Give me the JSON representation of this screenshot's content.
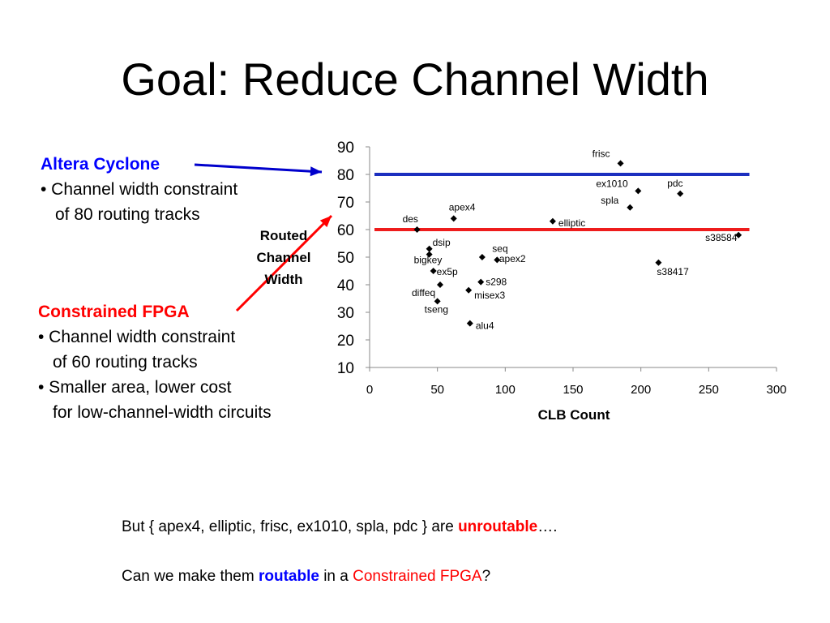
{
  "title": "Goal: Reduce Channel Width",
  "altera": {
    "heading": "Altera Cyclone",
    "line1": "•  Channel width constraint",
    "line2": "of 80 routing tracks"
  },
  "constrained": {
    "heading": "Constrained FPGA",
    "line1": "• Channel width constraint",
    "line2": "of 60 routing tracks",
    "line3": "• Smaller area, lower cost",
    "line4": "for low-channel-width circuits"
  },
  "colors": {
    "altera": "#0000cc",
    "constrained": "#ff0000",
    "blue_text": "#0000ff",
    "red_text": "#ff0000"
  },
  "chart_data": {
    "type": "scatter",
    "xlabel": "CLB Count",
    "ylabel_lines": [
      "Routed",
      "Channel",
      "Width"
    ],
    "xlim": [
      0,
      300
    ],
    "ylim": [
      10,
      90
    ],
    "xticks": [
      0,
      50,
      100,
      150,
      200,
      250,
      300
    ],
    "yticks": [
      10,
      20,
      30,
      40,
      50,
      60,
      70,
      80,
      90
    ],
    "grid": false,
    "marker": "diamond",
    "reference_lines": [
      {
        "y": 80,
        "x_range": [
          0,
          280
        ],
        "color": "#1c2fbf"
      },
      {
        "y": 60,
        "x_range": [
          0,
          280
        ],
        "color": "#ee1c1c"
      }
    ],
    "points": [
      {
        "label": "frisc",
        "x": 185,
        "y": 84
      },
      {
        "label": "ex1010",
        "x": 198,
        "y": 74
      },
      {
        "label": "pdc",
        "x": 229,
        "y": 73
      },
      {
        "label": "spla",
        "x": 192,
        "y": 68
      },
      {
        "label": "apex4",
        "x": 62,
        "y": 64
      },
      {
        "label": "elliptic",
        "x": 135,
        "y": 63
      },
      {
        "label": "des",
        "x": 35,
        "y": 60
      },
      {
        "label": "s38584",
        "x": 272,
        "y": 58
      },
      {
        "label": "dsip",
        "x": 44,
        "y": 53
      },
      {
        "label": "bigkey",
        "x": 44,
        "y": 51
      },
      {
        "label": "seq",
        "x": 94,
        "y": 49
      },
      {
        "label": "apex2",
        "x": 83,
        "y": 50
      },
      {
        "label": "s38417",
        "x": 213,
        "y": 48
      },
      {
        "label": "ex5p",
        "x": 47,
        "y": 45
      },
      {
        "label": "s298",
        "x": 82,
        "y": 41
      },
      {
        "label": "diffeq",
        "x": 52,
        "y": 40
      },
      {
        "label": "misex3",
        "x": 73,
        "y": 38
      },
      {
        "label": "tseng",
        "x": 50,
        "y": 34
      },
      {
        "label": "alu4",
        "x": 74,
        "y": 26
      }
    ]
  },
  "footer": {
    "line1_pre": "But  { apex4, elliptic, frisc, ex1010, spla, pdc }  are ",
    "line1_emph": "unroutable",
    "line1_post": "….",
    "line2_pre": "Can we make them ",
    "line2_emph": "routable",
    "line2_mid": " in a ",
    "line2_red": "Constrained FPGA",
    "line2_post": "?"
  }
}
